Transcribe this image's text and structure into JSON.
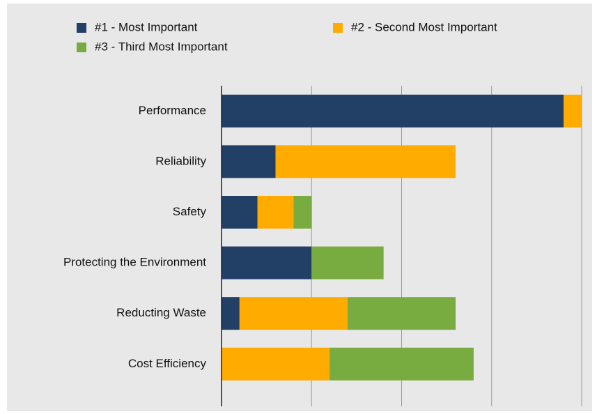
{
  "chart_data": {
    "type": "stacked_barh",
    "categories": [
      "Performance",
      "Reliability",
      "Safety",
      "Protecting the Environment",
      "Reducting Waste",
      "Cost Efficiency"
    ],
    "series": [
      {
        "name": "#1 - Most Important",
        "color": "#223f66",
        "values": [
          19,
          3,
          2,
          5,
          1,
          0
        ]
      },
      {
        "name": "#2 - Second Most Important",
        "color": "#ffab00",
        "values": [
          1,
          10,
          2,
          0,
          6,
          6
        ]
      },
      {
        "name": "#3 - Third Most Important",
        "color": "#78ac41",
        "values": [
          0,
          0,
          1,
          4,
          6,
          8
        ]
      }
    ],
    "xlim": [
      0,
      20
    ],
    "xticks": [
      0,
      5,
      10,
      15,
      20
    ],
    "grid": true
  }
}
